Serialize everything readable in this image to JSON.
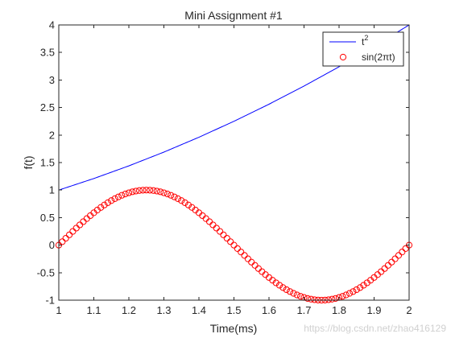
{
  "watermark": "https://blog.csdn.net/zhao416129",
  "chart_data": {
    "type": "line",
    "title": "Mini Assignment #1",
    "xlabel": "Time(ms)",
    "ylabel": "f(t)",
    "xlim": [
      1,
      2
    ],
    "ylim": [
      -1,
      4
    ],
    "grid": false,
    "legend_position": "top-right",
    "x_ticks": [
      1,
      1.1,
      1.2,
      1.3,
      1.4,
      1.5,
      1.6,
      1.7,
      1.8,
      1.9,
      2
    ],
    "x_tick_labels": [
      "1",
      "1.1",
      "1.2",
      "1.3",
      "1.4",
      "1.5",
      "1.6",
      "1.7",
      "1.8",
      "1.9",
      "2"
    ],
    "y_ticks": [
      -1,
      -0.5,
      0,
      0.5,
      1,
      1.5,
      2,
      2.5,
      3,
      3.5,
      4
    ],
    "y_tick_labels": [
      "-1",
      "-0.5",
      "0",
      "0.5",
      "1",
      "1.5",
      "2",
      "2.5",
      "3",
      "3.5",
      "4"
    ],
    "series": [
      {
        "name": "t",
        "name_superscript": "2",
        "style": "line",
        "color": "#0000ff",
        "x": [
          1,
          1.1,
          1.2,
          1.3,
          1.4,
          1.5,
          1.6,
          1.7,
          1.8,
          1.9,
          2
        ],
        "y": [
          1,
          1.21,
          1.44,
          1.69,
          1.96,
          2.25,
          2.56,
          2.89,
          3.24,
          3.61,
          4
        ]
      },
      {
        "name": "sin(2πt)",
        "style": "marker-circle",
        "color": "#ff0000",
        "x": [
          1,
          1.01,
          1.02,
          1.03,
          1.04,
          1.05,
          1.06,
          1.07,
          1.08,
          1.09,
          1.1,
          1.11,
          1.12,
          1.13,
          1.14,
          1.15,
          1.16,
          1.17,
          1.18,
          1.19,
          1.2,
          1.21,
          1.22,
          1.23,
          1.24,
          1.25,
          1.26,
          1.27,
          1.28,
          1.29,
          1.3,
          1.31,
          1.32,
          1.33,
          1.34,
          1.35,
          1.36,
          1.37,
          1.38,
          1.39,
          1.4,
          1.41,
          1.42,
          1.43,
          1.44,
          1.45,
          1.46,
          1.47,
          1.48,
          1.49,
          1.5,
          1.51,
          1.52,
          1.53,
          1.54,
          1.55,
          1.56,
          1.57,
          1.58,
          1.59,
          1.6,
          1.61,
          1.62,
          1.63,
          1.64,
          1.65,
          1.66,
          1.67,
          1.68,
          1.69,
          1.7,
          1.71,
          1.72,
          1.73,
          1.74,
          1.75,
          1.76,
          1.77,
          1.78,
          1.79,
          1.8,
          1.81,
          1.82,
          1.83,
          1.84,
          1.85,
          1.86,
          1.87,
          1.88,
          1.89,
          1.9,
          1.91,
          1.92,
          1.93,
          1.94,
          1.95,
          1.96,
          1.97,
          1.98,
          1.99,
          2
        ],
        "y": [
          0,
          0.063,
          0.125,
          0.187,
          0.249,
          0.309,
          0.368,
          0.426,
          0.482,
          0.536,
          0.588,
          0.637,
          0.685,
          0.729,
          0.771,
          0.809,
          0.844,
          0.876,
          0.905,
          0.93,
          0.951,
          0.969,
          0.982,
          0.992,
          0.998,
          1,
          0.998,
          0.992,
          0.982,
          0.969,
          0.951,
          0.93,
          0.905,
          0.876,
          0.844,
          0.809,
          0.771,
          0.729,
          0.685,
          0.637,
          0.588,
          0.536,
          0.482,
          0.426,
          0.368,
          0.309,
          0.249,
          0.187,
          0.125,
          0.063,
          0,
          -0.063,
          -0.125,
          -0.187,
          -0.249,
          -0.309,
          -0.368,
          -0.426,
          -0.482,
          -0.536,
          -0.588,
          -0.637,
          -0.685,
          -0.729,
          -0.771,
          -0.809,
          -0.844,
          -0.876,
          -0.905,
          -0.93,
          -0.951,
          -0.969,
          -0.982,
          -0.992,
          -0.998,
          -1,
          -0.998,
          -0.992,
          -0.982,
          -0.969,
          -0.951,
          -0.93,
          -0.905,
          -0.876,
          -0.844,
          -0.809,
          -0.771,
          -0.729,
          -0.685,
          -0.637,
          -0.588,
          -0.536,
          -0.482,
          -0.426,
          -0.368,
          -0.309,
          -0.249,
          -0.187,
          -0.125,
          -0.063,
          0
        ]
      }
    ]
  }
}
